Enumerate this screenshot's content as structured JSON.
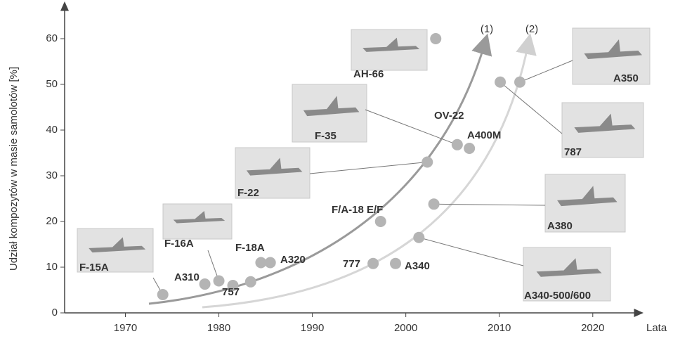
{
  "chart_data": {
    "type": "scatter",
    "x_label": "Lata",
    "y_label": "Udział kompozytów w masie samolotów [%]",
    "xlim": [
      1963.5,
      2024.6
    ],
    "ylim": [
      0,
      66
    ],
    "xticks": [
      1970,
      1980,
      1990,
      2000,
      2010,
      2020
    ],
    "yticks": [
      0,
      10,
      20,
      30,
      40,
      50,
      60
    ],
    "series": [
      {
        "color": "#b4b4b4",
        "labels": [
          "F-15A",
          "A310",
          "F-16A",
          "757",
          null,
          "F-18A",
          "A320",
          "777",
          "F/A-18 E/F",
          "A340",
          "A340-500/600",
          "F-22",
          "A380",
          "AH-66",
          "F-35",
          "A400M",
          "787",
          "A350"
        ],
        "x": [
          1974,
          1978.5,
          1980,
          1981.5,
          1983.4,
          1984.5,
          1985.5,
          1996.5,
          1997.3,
          1998.9,
          2001.4,
          2002.3,
          2003,
          2003.2,
          2005.5,
          2006.8,
          2010.1,
          2012.2
        ],
        "values": [
          4,
          6.3,
          7,
          6,
          6.8,
          11,
          11,
          10.8,
          20,
          10.8,
          16.5,
          33,
          23.8,
          60,
          36.8,
          36,
          50.5,
          50.5
        ]
      }
    ],
    "annotations": [
      "OV-22"
    ],
    "curve_labels": [
      "(1)",
      "(2)"
    ]
  }
}
